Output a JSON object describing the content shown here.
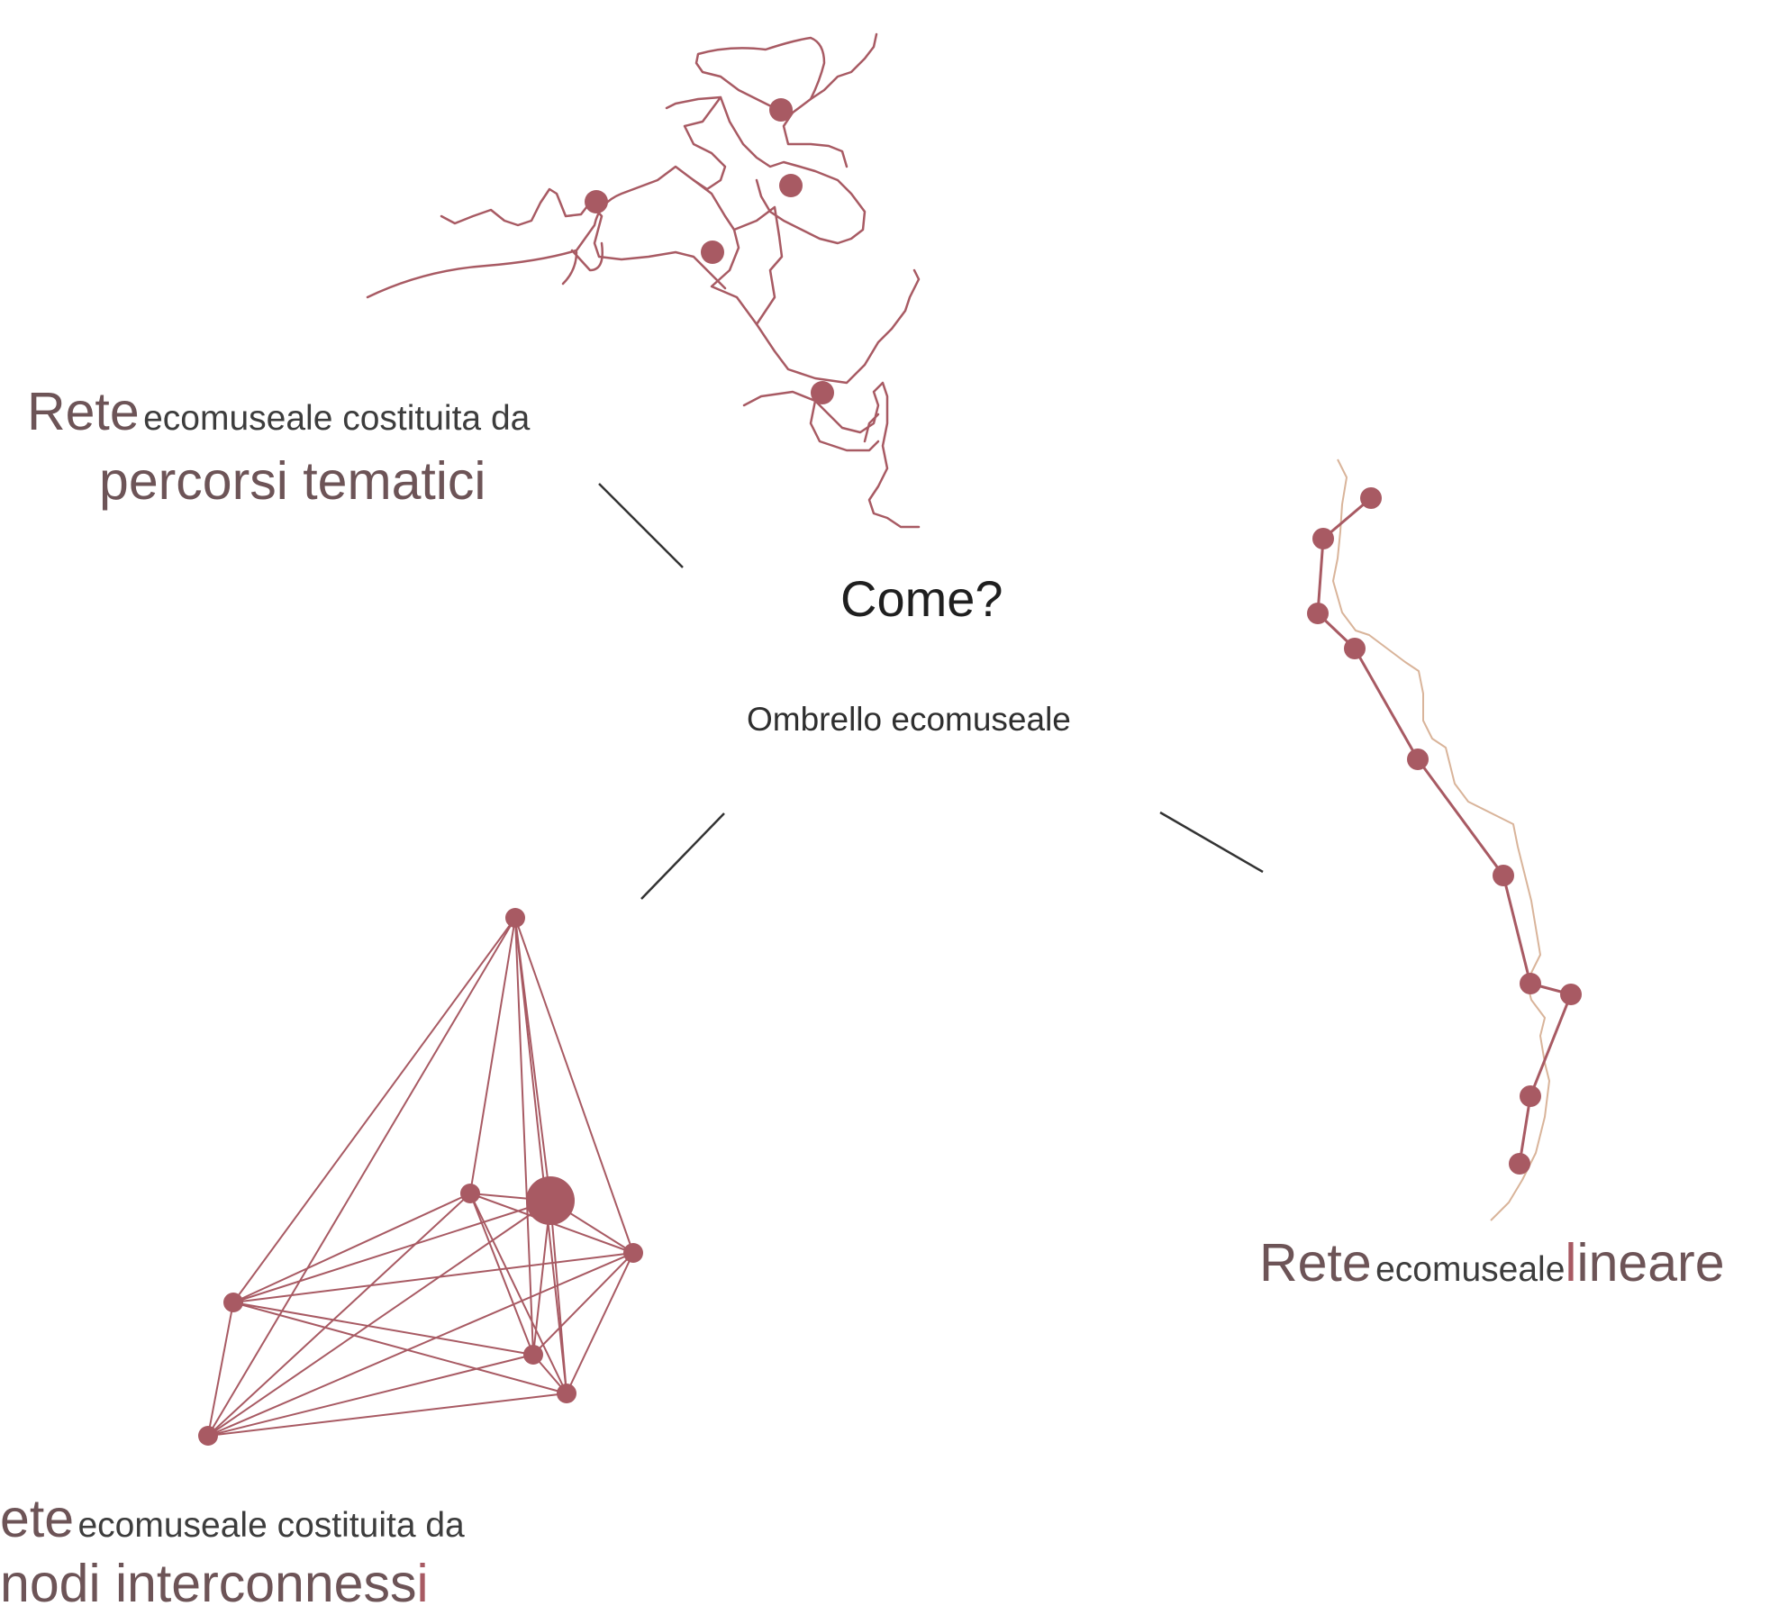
{
  "center": {
    "question": "Come?",
    "subtitle": "Ombrello ecomuseale"
  },
  "branches": {
    "thematic": {
      "label_big": "Rete",
      "label_small": "ecomuseale costituita da",
      "label_emph": "percorsi tematici"
    },
    "linear": {
      "label_big": "Rete",
      "label_small": "ecomuseale",
      "label_emph_accent": "l",
      "label_emph_rest": "ineare"
    },
    "nodes": {
      "label_big": "ete",
      "label_small": "ecomuseale costituita da",
      "label_emph": "nodi interconness",
      "label_emph_accent": "i"
    }
  },
  "colors": {
    "accent": "#a85a63",
    "label_dark": "#6d5457",
    "trail_light": "#d9b49a",
    "connector": "#333333",
    "text": "#1f1f1f"
  }
}
